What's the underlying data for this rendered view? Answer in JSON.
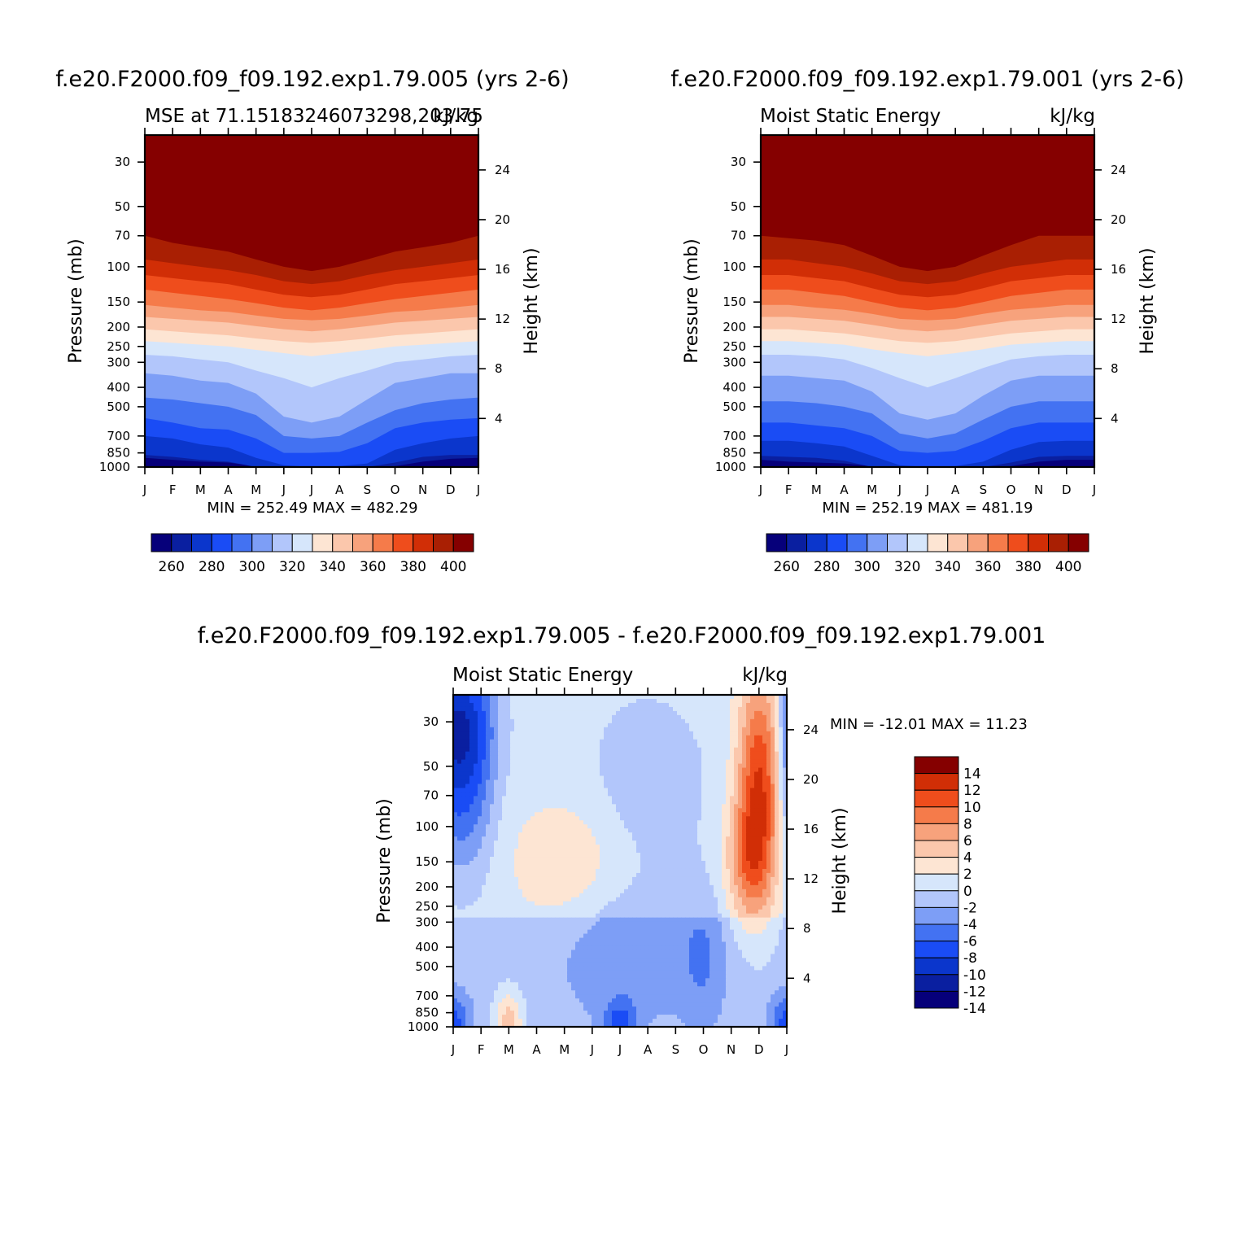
{
  "colors": {
    "abs_palette": [
      "#06007a",
      "#0a1fa0",
      "#0b36cc",
      "#1a4cf5",
      "#4372f2",
      "#7d9ef6",
      "#b2c6fb",
      "#d6e6fb",
      "#fde5d3",
      "#fbc7ac",
      "#f7a27c",
      "#f57b4a",
      "#ef4d1c",
      "#d12e06",
      "#a91f03",
      "#850000"
    ],
    "diff_palette": [
      "#06007a",
      "#0a1fa0",
      "#0b36cc",
      "#1a4cf5",
      "#4372f2",
      "#7d9ef6",
      "#b2c6fb",
      "#d6e6fb",
      "#fde5d3",
      "#fbc7ac",
      "#f7a27c",
      "#f57b4a",
      "#ef4d1c",
      "#d12e06",
      "#850000"
    ]
  },
  "panels": [
    {
      "main_title": "f.e20.F2000.f09_f09.192.exp1.79.005 (yrs 2-6)",
      "left_subtitle": "MSE at 71.15183246073298,203.75",
      "right_subtitle": "kJ/kg",
      "stats": "MIN = 252.49 MAX = 482.29",
      "colorbar_labels": [
        "260",
        "280",
        "300",
        "320",
        "340",
        "360",
        "380",
        "400"
      ]
    },
    {
      "main_title": "f.e20.F2000.f09_f09.192.exp1.79.001 (yrs 2-6)",
      "left_subtitle": "Moist Static Energy",
      "right_subtitle": "kJ/kg",
      "stats": "MIN = 252.19 MAX = 481.19",
      "colorbar_labels": [
        "260",
        "280",
        "300",
        "320",
        "340",
        "360",
        "380",
        "400"
      ]
    },
    {
      "main_title": "f.e20.F2000.f09_f09.192.exp1.79.005 - f.e20.F2000.f09_f09.192.exp1.79.001",
      "left_subtitle": "Moist Static Energy",
      "right_subtitle": "kJ/kg",
      "stats": "MIN = -12.01 MAX =  11.23",
      "colorbar_labels": [
        "14",
        "12",
        "10",
        "8",
        "6",
        "4",
        "2",
        "0",
        "-2",
        "-4",
        "-6",
        "-8",
        "-10",
        "-12",
        "-14"
      ]
    }
  ],
  "chart_data": [
    {
      "type": "contour",
      "title": "f.e20.F2000.f09_f09.192.exp1.79.005 (yrs 2-6)",
      "variable": "MSE at 71.15183246073298,203.75",
      "units": "kJ/kg",
      "x": [
        "J",
        "F",
        "M",
        "A",
        "M",
        "J",
        "J",
        "A",
        "S",
        "O",
        "N",
        "D",
        "J"
      ],
      "y_pressure_mb": [
        1000,
        850,
        700,
        500,
        400,
        300,
        250,
        200,
        150,
        100,
        70,
        50,
        30
      ],
      "y_height_km": [
        4,
        8,
        12,
        16,
        20,
        24
      ],
      "ylabel_left": "Pressure (mb)",
      "ylabel_right": "Height (km)",
      "levels": [
        260,
        270,
        280,
        290,
        300,
        310,
        320,
        330,
        340,
        350,
        360,
        370,
        380,
        390,
        400
      ],
      "level_boundaries_pressure_mb": {
        "260": [
          900,
          920,
          940,
          950,
          990,
          1010,
          1010,
          1010,
          1010,
          990,
          940,
          910,
          900
        ],
        "270": [
          870,
          890,
          920,
          940,
          1000,
          1010,
          1010,
          1010,
          1000,
          950,
          890,
          870,
          870
        ],
        "280": [
          700,
          720,
          770,
          800,
          900,
          980,
          1000,
          990,
          960,
          820,
          760,
          720,
          700
        ],
        "290": [
          570,
          600,
          640,
          650,
          720,
          850,
          850,
          840,
          760,
          640,
          600,
          580,
          570
        ],
        "300": [
          450,
          460,
          480,
          500,
          550,
          700,
          720,
          700,
          600,
          520,
          480,
          460,
          450
        ],
        "310": [
          340,
          350,
          370,
          380,
          430,
          560,
          600,
          560,
          460,
          380,
          360,
          340,
          340
        ],
        "320": [
          275,
          280,
          290,
          300,
          330,
          360,
          400,
          360,
          330,
          300,
          290,
          280,
          275
        ],
        "330": [
          235,
          240,
          245,
          250,
          260,
          270,
          280,
          270,
          260,
          250,
          245,
          240,
          235
        ],
        "340": [
          205,
          210,
          215,
          220,
          228,
          235,
          240,
          235,
          228,
          220,
          215,
          210,
          205
        ],
        "350": [
          178,
          182,
          186,
          190,
          198,
          205,
          210,
          205,
          198,
          190,
          186,
          182,
          178
        ],
        "360": [
          155,
          160,
          165,
          168,
          175,
          182,
          185,
          182,
          175,
          168,
          165,
          160,
          155
        ],
        "370": [
          130,
          135,
          140,
          145,
          152,
          160,
          165,
          160,
          152,
          145,
          140,
          135,
          130
        ],
        "380": [
          110,
          114,
          118,
          122,
          130,
          138,
          142,
          138,
          130,
          122,
          118,
          114,
          110
        ],
        "390": [
          92,
          96,
          100,
          104,
          110,
          118,
          122,
          118,
          110,
          104,
          100,
          96,
          92
        ],
        "400": [
          70,
          76,
          80,
          84,
          92,
          100,
          105,
          100,
          92,
          84,
          80,
          76,
          70
        ]
      },
      "min": 252.49,
      "max": 482.29
    },
    {
      "type": "contour",
      "title": "f.e20.F2000.f09_f09.192.exp1.79.001 (yrs 2-6)",
      "variable": "Moist Static Energy",
      "units": "kJ/kg",
      "x": [
        "J",
        "F",
        "M",
        "A",
        "M",
        "J",
        "J",
        "A",
        "S",
        "O",
        "N",
        "D",
        "J"
      ],
      "y_pressure_mb": [
        1000,
        850,
        700,
        500,
        400,
        300,
        250,
        200,
        150,
        100,
        70,
        50,
        30
      ],
      "y_height_km": [
        4,
        8,
        12,
        16,
        20,
        24
      ],
      "ylabel_left": "Pressure (mb)",
      "ylabel_right": "Height (km)",
      "levels": [
        260,
        270,
        280,
        290,
        300,
        310,
        320,
        330,
        340,
        350,
        360,
        370,
        380,
        390,
        400
      ],
      "level_boundaries_pressure_mb": {
        "260": [
          920,
          940,
          950,
          960,
          990,
          1010,
          1010,
          1010,
          1010,
          990,
          940,
          920,
          920
        ],
        "270": [
          880,
          890,
          900,
          930,
          1000,
          1010,
          1010,
          1010,
          1000,
          950,
          890,
          880,
          880
        ],
        "280": [
          740,
          740,
          760,
          790,
          880,
          980,
          1000,
          990,
          940,
          820,
          750,
          740,
          740
        ],
        "290": [
          600,
          600,
          620,
          640,
          700,
          830,
          850,
          830,
          740,
          640,
          600,
          600,
          600
        ],
        "300": [
          470,
          470,
          480,
          500,
          540,
          680,
          720,
          680,
          580,
          500,
          470,
          470,
          470
        ],
        "310": [
          350,
          350,
          360,
          370,
          420,
          540,
          580,
          540,
          440,
          370,
          350,
          350,
          350
        ],
        "320": [
          275,
          275,
          280,
          290,
          320,
          360,
          400,
          360,
          320,
          290,
          280,
          275,
          275
        ],
        "330": [
          235,
          235,
          240,
          245,
          258,
          270,
          280,
          270,
          258,
          245,
          240,
          235,
          235
        ],
        "340": [
          205,
          205,
          210,
          215,
          225,
          235,
          240,
          235,
          225,
          215,
          210,
          205,
          205
        ],
        "350": [
          178,
          178,
          182,
          186,
          195,
          205,
          210,
          205,
          195,
          186,
          182,
          178,
          178
        ],
        "360": [
          155,
          155,
          160,
          164,
          172,
          182,
          185,
          182,
          172,
          164,
          160,
          155,
          155
        ],
        "370": [
          130,
          130,
          135,
          140,
          150,
          160,
          165,
          160,
          150,
          140,
          135,
          130,
          130
        ],
        "380": [
          110,
          110,
          114,
          118,
          128,
          138,
          142,
          138,
          128,
          118,
          114,
          110,
          110
        ],
        "390": [
          92,
          92,
          96,
          100,
          108,
          118,
          122,
          118,
          108,
          100,
          96,
          92,
          92
        ],
        "400": [
          70,
          72,
          74,
          78,
          88,
          100,
          105,
          100,
          88,
          78,
          70,
          70,
          70
        ]
      },
      "min": 252.19,
      "max": 481.19
    },
    {
      "type": "contour",
      "title": "f.e20.F2000.f09_f09.192.exp1.79.005 - f.e20.F2000.f09_f09.192.exp1.79.001",
      "variable": "Moist Static Energy",
      "units": "kJ/kg",
      "x": [
        "J",
        "F",
        "M",
        "A",
        "M",
        "J",
        "J",
        "A",
        "S",
        "O",
        "N",
        "D",
        "J"
      ],
      "y_pressure_mb": [
        1000,
        850,
        700,
        500,
        400,
        300,
        250,
        200,
        150,
        100,
        70,
        50,
        30
      ],
      "y_height_km": [
        4,
        8,
        12,
        16,
        20,
        24
      ],
      "ylabel_left": "Pressure (mb)",
      "ylabel_right": "Height (km)",
      "levels": [
        -14,
        -12,
        -10,
        -8,
        -6,
        -4,
        -2,
        0,
        2,
        4,
        6,
        8,
        10,
        12,
        14
      ],
      "features": [
        {
          "region": "Jan upper levels (30-100 mb)",
          "value_range": [
            -10,
            -2
          ]
        },
        {
          "region": "Nov-Dec upper levels (30-200 mb)",
          "value_range": [
            2,
            10
          ]
        },
        {
          "region": "Apr-May 100-200 mb",
          "value_range": [
            2,
            4
          ]
        },
        {
          "region": "Jun-Sep 300-850 mb",
          "value_range": [
            -4,
            -2
          ]
        },
        {
          "region": "Mar near surface",
          "value_range": [
            2,
            8
          ]
        },
        {
          "region": "Jul near surface",
          "value_range": [
            -8,
            -4
          ]
        },
        {
          "region": "Jan/Dec near surface",
          "value_range": [
            -8,
            -4
          ]
        }
      ],
      "min": -12.01,
      "max": 11.23
    }
  ]
}
